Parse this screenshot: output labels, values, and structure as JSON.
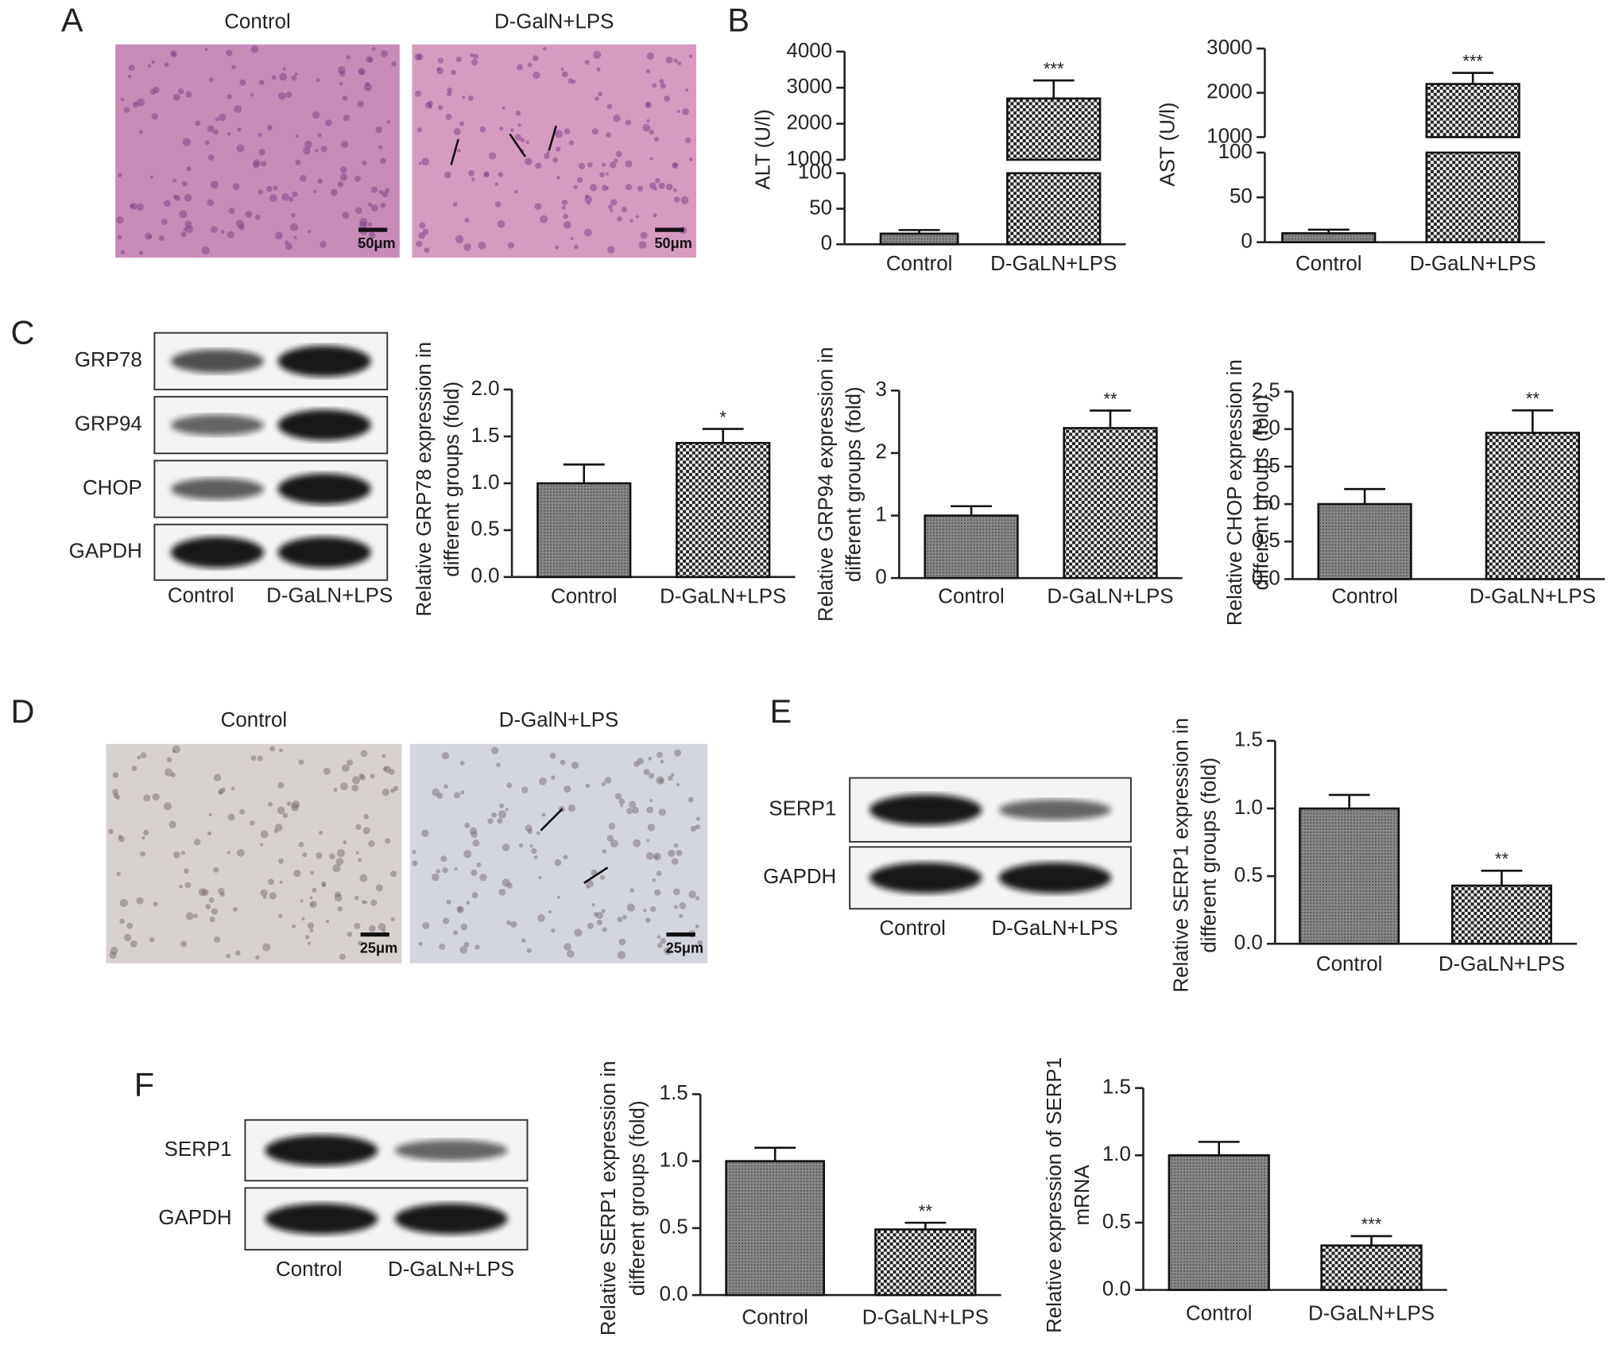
{
  "panel_labels": [
    "A",
    "B",
    "C",
    "D",
    "E",
    "F"
  ],
  "micrographs": [
    {
      "captions": [
        "Control",
        "D-GalN+LPS"
      ],
      "scale_bars": [
        "50μm",
        "50μm"
      ]
    },
    {
      "captions": [
        "Control",
        "D-GalN+LPS"
      ],
      "scale_bars": [
        "25μm",
        "25μm"
      ]
    }
  ],
  "blots": [
    {
      "rows": [
        "GRP78",
        "GRP94",
        "CHOP",
        "GAPDH"
      ],
      "columns": [
        "Control",
        "D-GaLN+LPS"
      ]
    },
    {
      "rows": [
        "SERP1",
        "GAPDH"
      ],
      "columns": [
        "Control",
        "D-GaLN+LPS"
      ]
    },
    {
      "rows": [
        "SERP1",
        "GAPDH"
      ],
      "columns": [
        "Control",
        "D-GaLN+LPS"
      ]
    }
  ],
  "chart_data": [
    {
      "type": "bar",
      "ylabel": [
        "ALT (U/l)"
      ],
      "categories": [
        "Control",
        "D-GaLN+LPS"
      ],
      "values": [
        15,
        2700
      ],
      "errors": [
        5,
        500
      ],
      "significance": "***",
      "ylim": [
        0,
        4000
      ],
      "y_break": [
        100,
        1000
      ],
      "yticks": [
        0,
        50,
        100,
        1000,
        2000,
        3000,
        4000
      ]
    },
    {
      "type": "bar",
      "ylabel": [
        "AST (U/l)"
      ],
      "categories": [
        "Control",
        "D-GaLN+LPS"
      ],
      "values": [
        10,
        2200
      ],
      "errors": [
        4,
        250
      ],
      "significance": "***",
      "ylim": [
        0,
        3000
      ],
      "y_break": [
        100,
        1000
      ],
      "yticks": [
        0,
        50,
        100,
        1000,
        2000,
        3000
      ]
    },
    {
      "type": "bar",
      "ylabel": [
        "Relative GRP78 expression in",
        "different groups (fold)"
      ],
      "categories": [
        "Control",
        "D-GaLN+LPS"
      ],
      "values": [
        1.0,
        1.43
      ],
      "errors": [
        0.2,
        0.15
      ],
      "significance": "*",
      "ylim": [
        0,
        2.0
      ],
      "yticks": [
        {
          "value": 0,
          "label": "0.0"
        },
        0.5,
        {
          "value": 1,
          "label": "1.0"
        },
        1.5,
        {
          "value": 2,
          "label": "2.0"
        }
      ]
    },
    {
      "type": "bar",
      "ylabel": [
        "Relative GRP94 expression in",
        "different groups (fold)"
      ],
      "categories": [
        "Control",
        "D-GaLN+LPS"
      ],
      "values": [
        1.0,
        2.4
      ],
      "errors": [
        0.15,
        0.28
      ],
      "significance": "**",
      "ylim": [
        0,
        3
      ],
      "yticks": [
        0,
        1,
        2,
        3
      ]
    },
    {
      "type": "bar",
      "ylabel": [
        "Relative CHOP expression in",
        "different groups (fold)"
      ],
      "categories": [
        "Control",
        "D-GaLN+LPS"
      ],
      "values": [
        1.0,
        1.95
      ],
      "errors": [
        0.2,
        0.3
      ],
      "significance": "**",
      "ylim": [
        0,
        2.5
      ],
      "yticks": [
        {
          "value": 0,
          "label": "0.0"
        },
        0.5,
        {
          "value": 1,
          "label": "1.0"
        },
        1.5,
        {
          "value": 2,
          "label": "2.0"
        },
        2.5
      ]
    },
    {
      "type": "bar",
      "ylabel": [
        "Relative SERP1 expression in",
        "different groups (fold)"
      ],
      "categories": [
        "Control",
        "D-GaLN+LPS"
      ],
      "values": [
        1.0,
        0.43
      ],
      "errors": [
        0.1,
        0.11
      ],
      "significance": "**",
      "ylim": [
        0,
        1.5
      ],
      "yticks": [
        {
          "value": 0,
          "label": "0.0"
        },
        0.5,
        {
          "value": 1,
          "label": "1.0"
        },
        1.5
      ]
    },
    {
      "type": "bar",
      "ylabel": [
        "Relative SERP1 expression in",
        "different groups (fold)"
      ],
      "categories": [
        "Control",
        "D-GaLN+LPS"
      ],
      "values": [
        1.0,
        0.49
      ],
      "errors": [
        0.1,
        0.05
      ],
      "significance": "**",
      "ylim": [
        0,
        1.5
      ],
      "yticks": [
        {
          "value": 0,
          "label": "0.0"
        },
        0.5,
        {
          "value": 1,
          "label": "1.0"
        },
        1.5
      ]
    },
    {
      "type": "bar",
      "ylabel": [
        "Relative expression of SERP1",
        "mRNA"
      ],
      "categories": [
        "Control",
        "D-GaLN+LPS"
      ],
      "values": [
        1.0,
        0.33
      ],
      "errors": [
        0.1,
        0.07
      ],
      "significance": "***",
      "ylim": [
        0,
        1.5
      ],
      "yticks": [
        {
          "value": 0,
          "label": "0.0"
        },
        0.5,
        {
          "value": 1,
          "label": "1.0"
        },
        1.5
      ]
    }
  ]
}
